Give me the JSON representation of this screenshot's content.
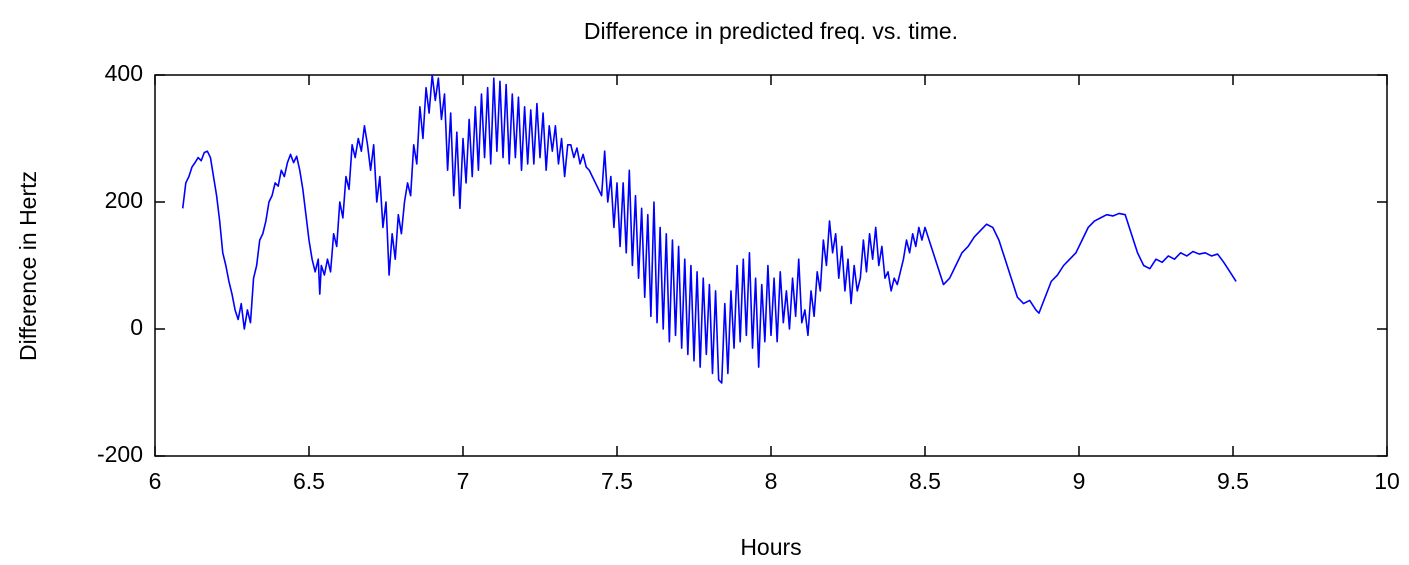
{
  "chart_data": {
    "type": "line",
    "title": "Difference in predicted freq. vs. time.",
    "xlabel": "Hours",
    "ylabel": "Difference in Hertz",
    "color": "#0000ff",
    "xlim": [
      6,
      10
    ],
    "xticks": [
      6,
      6.5,
      7,
      7.5,
      8,
      8.5,
      9,
      9.5,
      10
    ],
    "ylim": [
      -200,
      400
    ],
    "yticks": [
      -200,
      0,
      200,
      400
    ],
    "x": [
      6.09,
      6.1,
      6.11,
      6.12,
      6.13,
      6.14,
      6.15,
      6.16,
      6.17,
      6.18,
      6.19,
      6.2,
      6.21,
      6.22,
      6.23,
      6.24,
      6.25,
      6.26,
      6.27,
      6.28,
      6.29,
      6.3,
      6.31,
      6.32,
      6.33,
      6.34,
      6.35,
      6.36,
      6.37,
      6.38,
      6.39,
      6.4,
      6.41,
      6.42,
      6.43,
      6.44,
      6.45,
      6.46,
      6.47,
      6.48,
      6.49,
      6.5,
      6.51,
      6.52,
      6.53,
      6.535,
      6.54,
      6.55,
      6.56,
      6.57,
      6.58,
      6.59,
      6.6,
      6.61,
      6.62,
      6.63,
      6.64,
      6.65,
      6.66,
      6.67,
      6.68,
      6.69,
      6.7,
      6.71,
      6.72,
      6.73,
      6.74,
      6.75,
      6.76,
      6.77,
      6.78,
      6.79,
      6.8,
      6.81,
      6.82,
      6.83,
      6.84,
      6.85,
      6.86,
      6.87,
      6.88,
      6.89,
      6.9,
      6.91,
      6.92,
      6.93,
      6.94,
      6.95,
      6.96,
      6.97,
      6.98,
      6.99,
      7.0,
      7.01,
      7.02,
      7.03,
      7.04,
      7.05,
      7.06,
      7.07,
      7.08,
      7.09,
      7.1,
      7.11,
      7.12,
      7.13,
      7.14,
      7.15,
      7.16,
      7.17,
      7.18,
      7.19,
      7.2,
      7.21,
      7.22,
      7.23,
      7.24,
      7.25,
      7.26,
      7.27,
      7.28,
      7.29,
      7.3,
      7.31,
      7.32,
      7.33,
      7.34,
      7.35,
      7.36,
      7.37,
      7.38,
      7.39,
      7.4,
      7.41,
      7.42,
      7.43,
      7.44,
      7.45,
      7.46,
      7.47,
      7.48,
      7.49,
      7.5,
      7.51,
      7.52,
      7.53,
      7.54,
      7.55,
      7.56,
      7.57,
      7.58,
      7.59,
      7.6,
      7.61,
      7.62,
      7.63,
      7.64,
      7.65,
      7.66,
      7.67,
      7.68,
      7.69,
      7.7,
      7.71,
      7.72,
      7.73,
      7.74,
      7.75,
      7.76,
      7.77,
      7.78,
      7.79,
      7.8,
      7.81,
      7.82,
      7.83,
      7.84,
      7.85,
      7.86,
      7.87,
      7.88,
      7.89,
      7.9,
      7.91,
      7.92,
      7.93,
      7.94,
      7.95,
      7.96,
      7.97,
      7.98,
      7.99,
      8.0,
      8.01,
      8.02,
      8.03,
      8.04,
      8.05,
      8.06,
      8.07,
      8.08,
      8.09,
      8.1,
      8.11,
      8.12,
      8.13,
      8.14,
      8.15,
      8.16,
      8.17,
      8.18,
      8.19,
      8.2,
      8.21,
      8.22,
      8.23,
      8.24,
      8.25,
      8.26,
      8.27,
      8.28,
      8.29,
      8.3,
      8.31,
      8.32,
      8.33,
      8.34,
      8.35,
      8.36,
      8.37,
      8.38,
      8.39,
      8.4,
      8.41,
      8.42,
      8.43,
      8.44,
      8.45,
      8.46,
      8.47,
      8.48,
      8.49,
      8.5,
      8.52,
      8.54,
      8.56,
      8.58,
      8.6,
      8.62,
      8.64,
      8.66,
      8.68,
      8.7,
      8.72,
      8.74,
      8.76,
      8.78,
      8.8,
      8.82,
      8.84,
      8.86,
      8.87,
      8.89,
      8.91,
      8.93,
      8.95,
      8.97,
      8.99,
      9.01,
      9.03,
      9.05,
      9.07,
      9.09,
      9.11,
      9.13,
      9.15,
      9.17,
      9.19,
      9.21,
      9.23,
      9.25,
      9.27,
      9.29,
      9.31,
      9.33,
      9.35,
      9.37,
      9.39,
      9.41,
      9.43,
      9.45,
      9.47,
      9.49,
      9.51
    ],
    "values": [
      190,
      230,
      240,
      255,
      262,
      270,
      265,
      278,
      280,
      270,
      240,
      210,
      170,
      120,
      100,
      75,
      55,
      30,
      15,
      40,
      0,
      30,
      10,
      80,
      100,
      140,
      150,
      170,
      200,
      210,
      230,
      225,
      250,
      240,
      262,
      275,
      262,
      272,
      250,
      220,
      180,
      140,
      110,
      90,
      110,
      55,
      100,
      85,
      110,
      90,
      150,
      130,
      200,
      175,
      240,
      220,
      290,
      270,
      300,
      280,
      320,
      290,
      250,
      290,
      200,
      240,
      160,
      200,
      85,
      150,
      110,
      180,
      150,
      200,
      230,
      210,
      290,
      260,
      350,
      300,
      380,
      340,
      400,
      360,
      395,
      330,
      370,
      250,
      340,
      210,
      310,
      190,
      300,
      230,
      330,
      240,
      350,
      250,
      370,
      270,
      380,
      260,
      395,
      280,
      390,
      270,
      385,
      260,
      370,
      270,
      365,
      250,
      350,
      260,
      345,
      260,
      355,
      270,
      340,
      250,
      320,
      280,
      320,
      260,
      300,
      240,
      290,
      290,
      270,
      285,
      260,
      275,
      255,
      250,
      240,
      230,
      220,
      210,
      280,
      200,
      240,
      160,
      230,
      130,
      230,
      120,
      250,
      100,
      210,
      80,
      190,
      50,
      180,
      20,
      200,
      10,
      160,
      0,
      150,
      -20,
      140,
      -10,
      130,
      -30,
      110,
      -40,
      100,
      -50,
      90,
      -60,
      80,
      -40,
      70,
      -70,
      60,
      -80,
      -85,
      40,
      -70,
      60,
      -30,
      100,
      -20,
      110,
      -10,
      120,
      -30,
      80,
      -60,
      70,
      -20,
      100,
      -10,
      80,
      -20,
      90,
      10,
      60,
      0,
      80,
      20,
      110,
      10,
      30,
      -10,
      60,
      20,
      90,
      60,
      140,
      100,
      170,
      120,
      150,
      80,
      130,
      60,
      110,
      40,
      100,
      60,
      80,
      140,
      90,
      150,
      110,
      160,
      100,
      130,
      80,
      90,
      60,
      80,
      70,
      90,
      110,
      140,
      120,
      150,
      130,
      160,
      140,
      160,
      130,
      100,
      70,
      80,
      100,
      120,
      130,
      145,
      155,
      165,
      160,
      140,
      110,
      80,
      50,
      40,
      45,
      30,
      25,
      50,
      75,
      85,
      100,
      110,
      120,
      140,
      160,
      170,
      175,
      180,
      178,
      182,
      180,
      150,
      120,
      100,
      95,
      110,
      105,
      115,
      110,
      120,
      115,
      122,
      118,
      120,
      115,
      118,
      105,
      90,
      75
    ]
  }
}
